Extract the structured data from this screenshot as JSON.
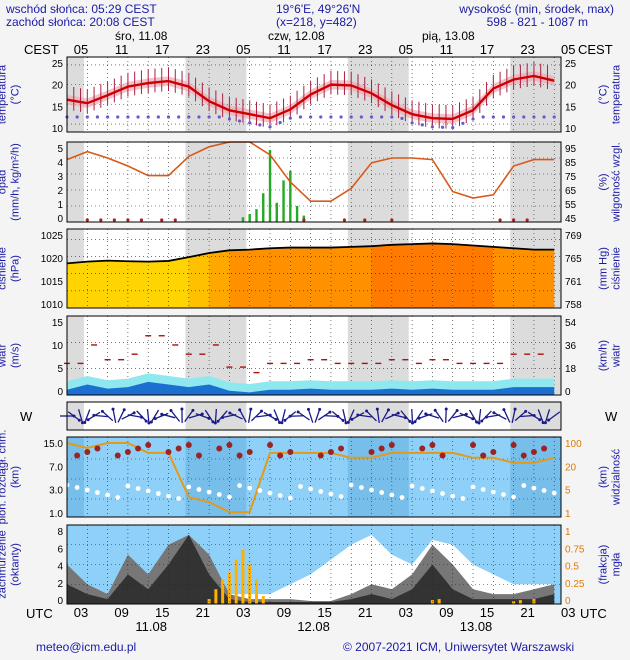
{
  "header": {
    "sunrise": "wschód słońca: 05:29 CEST",
    "sunset": "zachód słońca: 20:08 CEST",
    "coords": "19°6'E, 49°26'N",
    "grid": "(x=218, y=482)",
    "altitude_title": "wysokość (min, środek, max)",
    "altitude_values": "598 - 821 - 1087 m"
  },
  "time_axis": {
    "top_zone": "CEST",
    "bottom_zone": "UTC",
    "day_labels_top": [
      "śro, 11.08",
      "czw, 12.08",
      "pią, 13.08"
    ],
    "hours_top": [
      "05",
      "11",
      "17",
      "23",
      "05",
      "11",
      "17",
      "23",
      "05",
      "11",
      "17",
      "23",
      "05"
    ],
    "hours_bottom": [
      "03",
      "09",
      "15",
      "21",
      "03",
      "09",
      "15",
      "21",
      "03",
      "09",
      "15",
      "21",
      "03"
    ],
    "dates_bottom": [
      "11.08",
      "12.08",
      "13.08"
    ]
  },
  "panels": {
    "temperature": {
      "left_label": "temperatura",
      "left_unit": "(°C)",
      "right_label": "temperatura",
      "right_unit": "(°C)",
      "ticks": [
        "25",
        "20",
        "15",
        "10"
      ]
    },
    "precip": {
      "left_label": "opad",
      "left_unit": "(mm/h, kg/m²/h)",
      "right_label": "wilgotność wzgl.",
      "right_unit": "(%)",
      "left_ticks": [
        "5",
        "4",
        "3",
        "2",
        "1",
        "0"
      ],
      "right_ticks": [
        "95",
        "85",
        "75",
        "65",
        "55",
        "45"
      ]
    },
    "pressure": {
      "left_label": "ciśnienie",
      "left_unit": "(hPa)",
      "right_label": "ciśnienie",
      "right_unit": "(mm Hg)",
      "left_ticks": [
        "1025",
        "1020",
        "1015",
        "1010"
      ],
      "right_ticks": [
        "769",
        "765",
        "761",
        "758"
      ]
    },
    "wind": {
      "left_label": "wiatr",
      "left_unit": "(m/s)",
      "right_label": "wiatr",
      "right_unit": "(km/h)",
      "left_ticks": [
        "15",
        "10",
        "5",
        "0"
      ],
      "right_ticks": [
        "54",
        "36",
        "18",
        "0"
      ]
    },
    "direction": {
      "left_compass": "W",
      "right_compass": "W"
    },
    "clouds": {
      "left_label": "pion. rozciągł. chm.",
      "left_unit": "(km)",
      "right_label": "widzialność",
      "right_unit": "(km)",
      "left_ticks": [
        "15.0",
        "7.0",
        "3.0",
        "1.0"
      ],
      "right_ticks": [
        "100",
        "20",
        "5",
        "1"
      ]
    },
    "cloudcover": {
      "left_label": "zachmurzenie",
      "left_unit": "(oktanty)",
      "right_label": "mgła",
      "right_unit": "(frakcja)",
      "left_ticks": [
        "8",
        "6",
        "4",
        "2",
        "0"
      ],
      "right_ticks": [
        "1",
        "0.75",
        "0.5",
        "0.25",
        "0"
      ]
    }
  },
  "footer": {
    "email": "meteo@icm.edu.pl",
    "copyright": "© 2007-2021 ICM, Uniwersytet Warszawski"
  },
  "colors": {
    "accent": "#1a1aa6",
    "temperature": "#cc0000",
    "humidity": "#d85a1a",
    "wind": "#1c6fd0",
    "sky": "#8fd0f8"
  },
  "chart_data": [
    {
      "type": "line",
      "title": "temperatura",
      "unit": "°C",
      "x": [
        0,
        3,
        6,
        9,
        12,
        15,
        18,
        21,
        24,
        27,
        30,
        33,
        36,
        39,
        42,
        45,
        48,
        51,
        54,
        57,
        60,
        63,
        66,
        69,
        72
      ],
      "series": [
        {
          "values": [
            16.2,
            15.3,
            17.3,
            19.5,
            20.4,
            20.9,
            19.5,
            15.8,
            13.5,
            12.5,
            11.5,
            13.7,
            17.5,
            20.0,
            19.8,
            17.8,
            14.8,
            12.5,
            11.5,
            11.3,
            13.5,
            19.0,
            21.3,
            22.2,
            21.0
          ]
        }
      ],
      "ylim": [
        8,
        27
      ]
    },
    {
      "type": "line",
      "title": "wilgotność wzgl.",
      "unit": "%",
      "ylim": [
        45,
        95
      ],
      "series": [
        {
          "values": [
            84,
            89,
            85,
            80,
            74,
            74,
            86,
            92,
            95,
            95,
            87,
            70,
            58,
            58,
            66,
            82,
            85,
            85,
            84,
            64,
            60,
            62,
            80,
            84,
            84
          ]
        }
      ]
    },
    {
      "type": "line",
      "title": "ciśnienie",
      "unit": "hPa",
      "ylim": [
        1005,
        1028
      ],
      "series": [
        {
          "values": [
            1018.0,
            1018.5,
            1018.8,
            1018.6,
            1018.5,
            1018.7,
            1019.8,
            1021.0,
            1021.8,
            1022.0,
            1022.4,
            1022.6,
            1022.6,
            1022.6,
            1022.8,
            1023.0,
            1023.4,
            1023.6,
            1023.8,
            1023.6,
            1023.2,
            1022.8,
            1022.4,
            1022.0,
            1022.0
          ]
        }
      ]
    },
    {
      "type": "line",
      "title": "wiatr",
      "unit": "m/s",
      "ylim": [
        0,
        15
      ],
      "series": [
        {
          "values": [
            1.0,
            2.0,
            1.2,
            1.5,
            2.5,
            2.0,
            1.5,
            2.0,
            0.8,
            0.5,
            1.0,
            1.0,
            1.2,
            1.0,
            1.0,
            1.0,
            1.2,
            1.0,
            1.2,
            1.0,
            1.0,
            1.0,
            1.5,
            1.5,
            1.5
          ]
        }
      ]
    },
    {
      "type": "bar",
      "title": "opad",
      "unit": "mm/h",
      "x": [
        26,
        27,
        28,
        29,
        30,
        31,
        32,
        33,
        34,
        35
      ],
      "values": [
        0.3,
        0.5,
        0.8,
        1.8,
        4.5,
        1.2,
        2.6,
        3.2,
        1.0,
        0.4
      ]
    }
  ]
}
